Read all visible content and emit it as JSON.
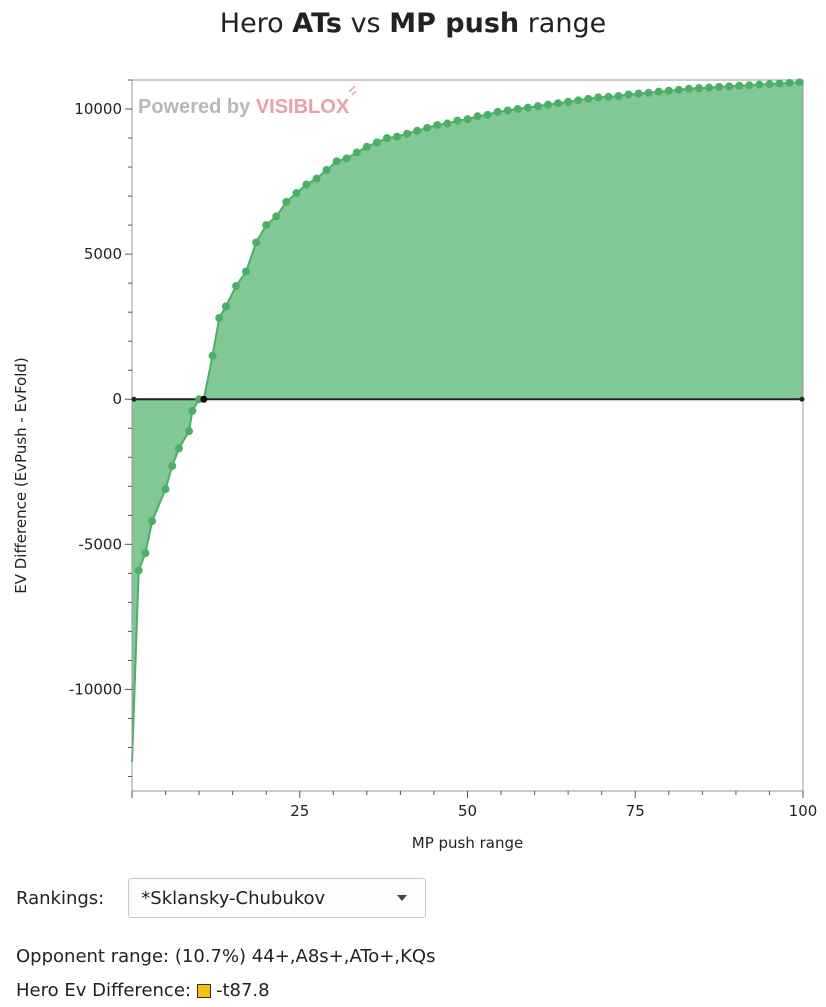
{
  "chart_data": {
    "type": "area",
    "title_parts": [
      {
        "text": "Hero ",
        "bold": false
      },
      {
        "text": "ATs",
        "bold": true
      },
      {
        "text": " vs ",
        "bold": false
      },
      {
        "text": "MP push",
        "bold": true
      },
      {
        "text": " range",
        "bold": false
      }
    ],
    "xlabel": "MP push range",
    "ylabel": "EV Difference (EvPush - EvFold)",
    "xlim": [
      0,
      100
    ],
    "ylim": [
      -13500,
      11000
    ],
    "xticks": [
      25,
      50,
      75,
      100
    ],
    "yticks": [
      -10000,
      -5000,
      0,
      5000,
      10000
    ],
    "grid": false,
    "colors": {
      "fill": "#82c796",
      "line": "#4daf67",
      "point": "#4daf67",
      "zero_line": "#222222"
    },
    "start_point": {
      "x": 0,
      "y": -12500
    },
    "x": [
      1,
      2,
      3,
      5,
      6,
      7,
      8.5,
      9,
      10,
      10.7,
      12,
      13,
      14,
      15.5,
      17,
      18.5,
      20,
      21.5,
      23,
      24.5,
      26,
      27.5,
      29,
      30.5,
      32,
      33.5,
      35,
      36.5,
      38,
      39.5,
      41,
      42.5,
      44,
      45.5,
      47,
      48.5,
      50,
      51.5,
      53,
      54.5,
      56,
      57.5,
      59,
      60.5,
      62,
      63.5,
      65,
      66.5,
      68,
      69.5,
      71,
      72.5,
      74,
      75.5,
      77,
      78.5,
      80,
      81.5,
      83,
      84.5,
      86,
      87.5,
      89,
      90.5,
      92,
      93.5,
      95,
      96.5,
      98,
      99.5
    ],
    "y": [
      -5900,
      -5300,
      -4200,
      -3100,
      -2300,
      -1700,
      -1100,
      -400,
      0,
      0,
      1500,
      2800,
      3200,
      3900,
      4400,
      5400,
      6000,
      6300,
      6800,
      7100,
      7400,
      7600,
      7900,
      8200,
      8300,
      8500,
      8700,
      8850,
      9000,
      9050,
      9150,
      9250,
      9350,
      9450,
      9500,
      9600,
      9650,
      9750,
      9800,
      9900,
      9950,
      10000,
      10050,
      10100,
      10150,
      10200,
      10250,
      10300,
      10350,
      10400,
      10420,
      10450,
      10500,
      10530,
      10560,
      10600,
      10630,
      10660,
      10700,
      10720,
      10740,
      10760,
      10780,
      10800,
      10820,
      10840,
      10860,
      10880,
      10900,
      10920
    ],
    "highlight_x": 10.7,
    "watermark": {
      "prefix": "Powered by ",
      "brand": "VISIBLOX"
    }
  },
  "controls": {
    "rankings_label": "Rankings:",
    "rankings_selected": "*Sklansky-Chubukov",
    "opponent_label": "Opponent range:",
    "opponent_value": "(10.7%) 44+,A8s+,ATo+,KQs",
    "hero_label": "Hero Ev Difference:",
    "hero_value": "-t87.8",
    "hero_swatch_color": "#f4c20d"
  }
}
